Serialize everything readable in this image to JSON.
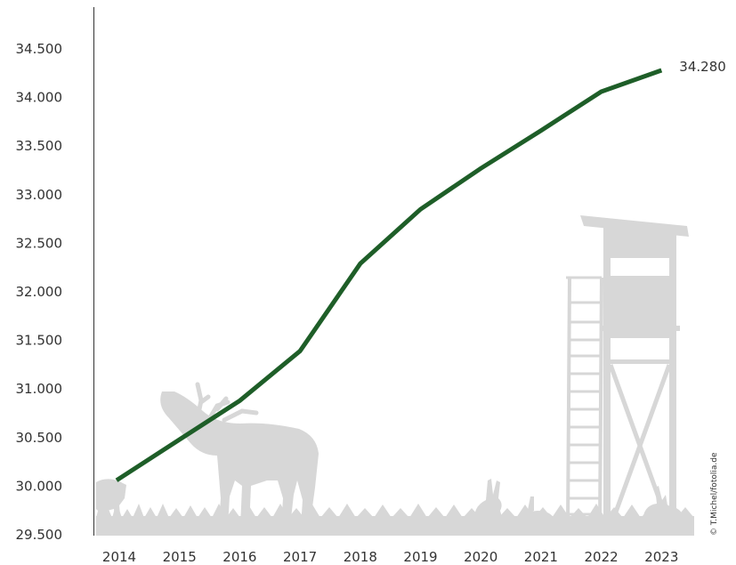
{
  "chart_data": {
    "type": "line",
    "title": "",
    "xlabel": "",
    "ylabel": "",
    "categories": [
      "2014",
      "2015",
      "2016",
      "2017",
      "2018",
      "2019",
      "2020",
      "2021",
      "2022",
      "2023"
    ],
    "series": [
      {
        "values": [
          30060,
          30480,
          30880,
          31390,
          32290,
          32850,
          33270,
          33660,
          34060,
          34280
        ],
        "color": "#1e5e28"
      }
    ],
    "ylim": [
      29500,
      34800
    ],
    "yticks": [
      29500,
      30000,
      30500,
      31000,
      31500,
      32000,
      32500,
      33000,
      33500,
      34000,
      34500
    ],
    "ytick_labels": [
      "29.500",
      "30.000",
      "30.500",
      "31.000",
      "31.500",
      "32.000",
      "32.500",
      "33.000",
      "33.500",
      "34.000",
      "34.500"
    ],
    "end_label": "34.280",
    "grid": false,
    "legend": "none"
  },
  "background": {
    "credit": "© T.Michel/fotolia.de",
    "silhouette_color": "#d7d7d7"
  }
}
